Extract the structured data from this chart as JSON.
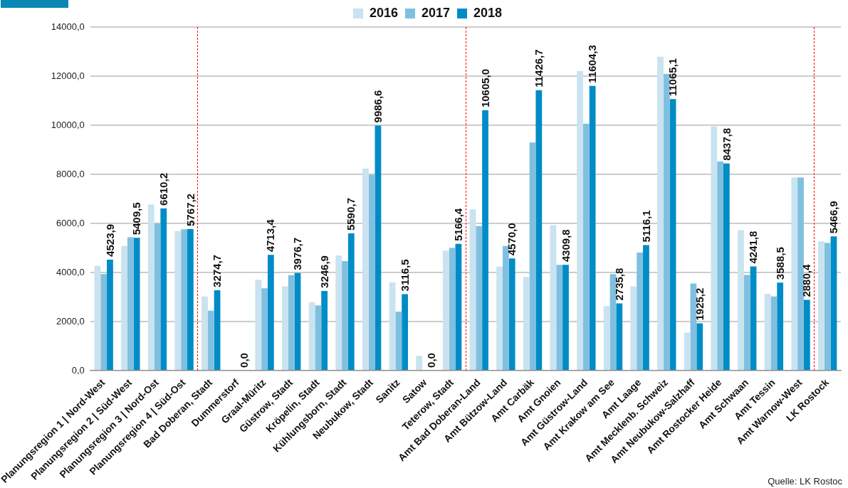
{
  "chart_data": {
    "type": "bar",
    "categories": [
      "Planungsregion 1 | Nord-West",
      "Planungsregion 2 | Süd-West",
      "Planungsregion 3 | Nord-Ost",
      "Planungsregion 4 | Süd-Ost",
      "Bad Doberan, Stadt",
      "Dummerstorf",
      "Graal-Müritz",
      "Güstrow, Stadt",
      "Kröpelin, Stadt",
      "Kühlungsborn, Stadt",
      "Neubukow, Stadt",
      "Sanitz",
      "Satow",
      "Teterow, Stadt",
      "Amt Bad Doberan-Land",
      "Amt Bützow-Land",
      "Amt Carbäk",
      "Amt Gnoien",
      "Amt Güstrow-Land",
      "Amt Krakow am See",
      "Amt Laage",
      "Amt Mecklenb. Schweiz",
      "Amt Neubukow-Salzhaff",
      "Amt Rostocker Heide",
      "Amt Schwaan",
      "Amt Tessin",
      "Amt Warnow-West",
      "LK Rostock"
    ],
    "series": [
      {
        "name": "2016",
        "color": "#c9e3f0",
        "values": [
          4270,
          5080,
          6770,
          5690,
          3020,
          0,
          3700,
          3430,
          2780,
          4690,
          8230,
          3590,
          600,
          4890,
          6570,
          4240,
          3820,
          5920,
          12210,
          2630,
          3430,
          12790,
          1550,
          9950,
          5720,
          3130,
          7870,
          5270
        ]
      },
      {
        "name": "2017",
        "color": "#7fc0e0",
        "values": [
          3930,
          5430,
          6000,
          5760,
          2440,
          0,
          3350,
          3890,
          2660,
          4460,
          7980,
          2400,
          0,
          5000,
          5890,
          5080,
          9300,
          4310,
          10060,
          3930,
          4810,
          12090,
          3550,
          8520,
          3900,
          3020,
          7870,
          5200
        ]
      },
      {
        "name": "2018",
        "color": "#008cc6",
        "values": [
          4523.9,
          5409.5,
          6610.2,
          5767.2,
          3274.7,
          0,
          4713.4,
          3976.7,
          3246.9,
          5590.7,
          9986.6,
          3116.5,
          0,
          5166.4,
          10605,
          4570,
          11426.7,
          4309.8,
          11604.3,
          2735.8,
          5116.1,
          11065.1,
          1925.2,
          8437.8,
          4241.8,
          3588.5,
          2880.4,
          5466.9
        ],
        "value_labels": [
          "4523,9",
          "5409,5",
          "6610,2",
          "5767,2",
          "3274,7",
          "0,0",
          "4713,4",
          "3976,7",
          "3246,9",
          "5590,7",
          "9986,6",
          "3116,5",
          "0,0",
          "5166,4",
          "10605,0",
          "4570,0",
          "11426,7",
          "4309,8",
          "11604,3",
          "2735,8",
          "5116,1",
          "11065,1",
          "1925,2",
          "8437,8",
          "4241,8",
          "3588,5",
          "2880,4",
          "5466,9"
        ]
      }
    ],
    "ylim": [
      0,
      14000
    ],
    "yticks": [
      {
        "value": 0,
        "label": "0,0"
      },
      {
        "value": 2000,
        "label": "2000,0"
      },
      {
        "value": 4000,
        "label": "4000,0"
      },
      {
        "value": 6000,
        "label": "6000,0"
      },
      {
        "value": 8000,
        "label": "8000,0"
      },
      {
        "value": 10000,
        "label": "10000,0"
      },
      {
        "value": 12000,
        "label": "12000,0"
      },
      {
        "value": 14000,
        "label": "14000,0"
      }
    ],
    "grid": "y",
    "legend": "top",
    "annotations": [
      "Quelle: LK Rostoc"
    ]
  }
}
